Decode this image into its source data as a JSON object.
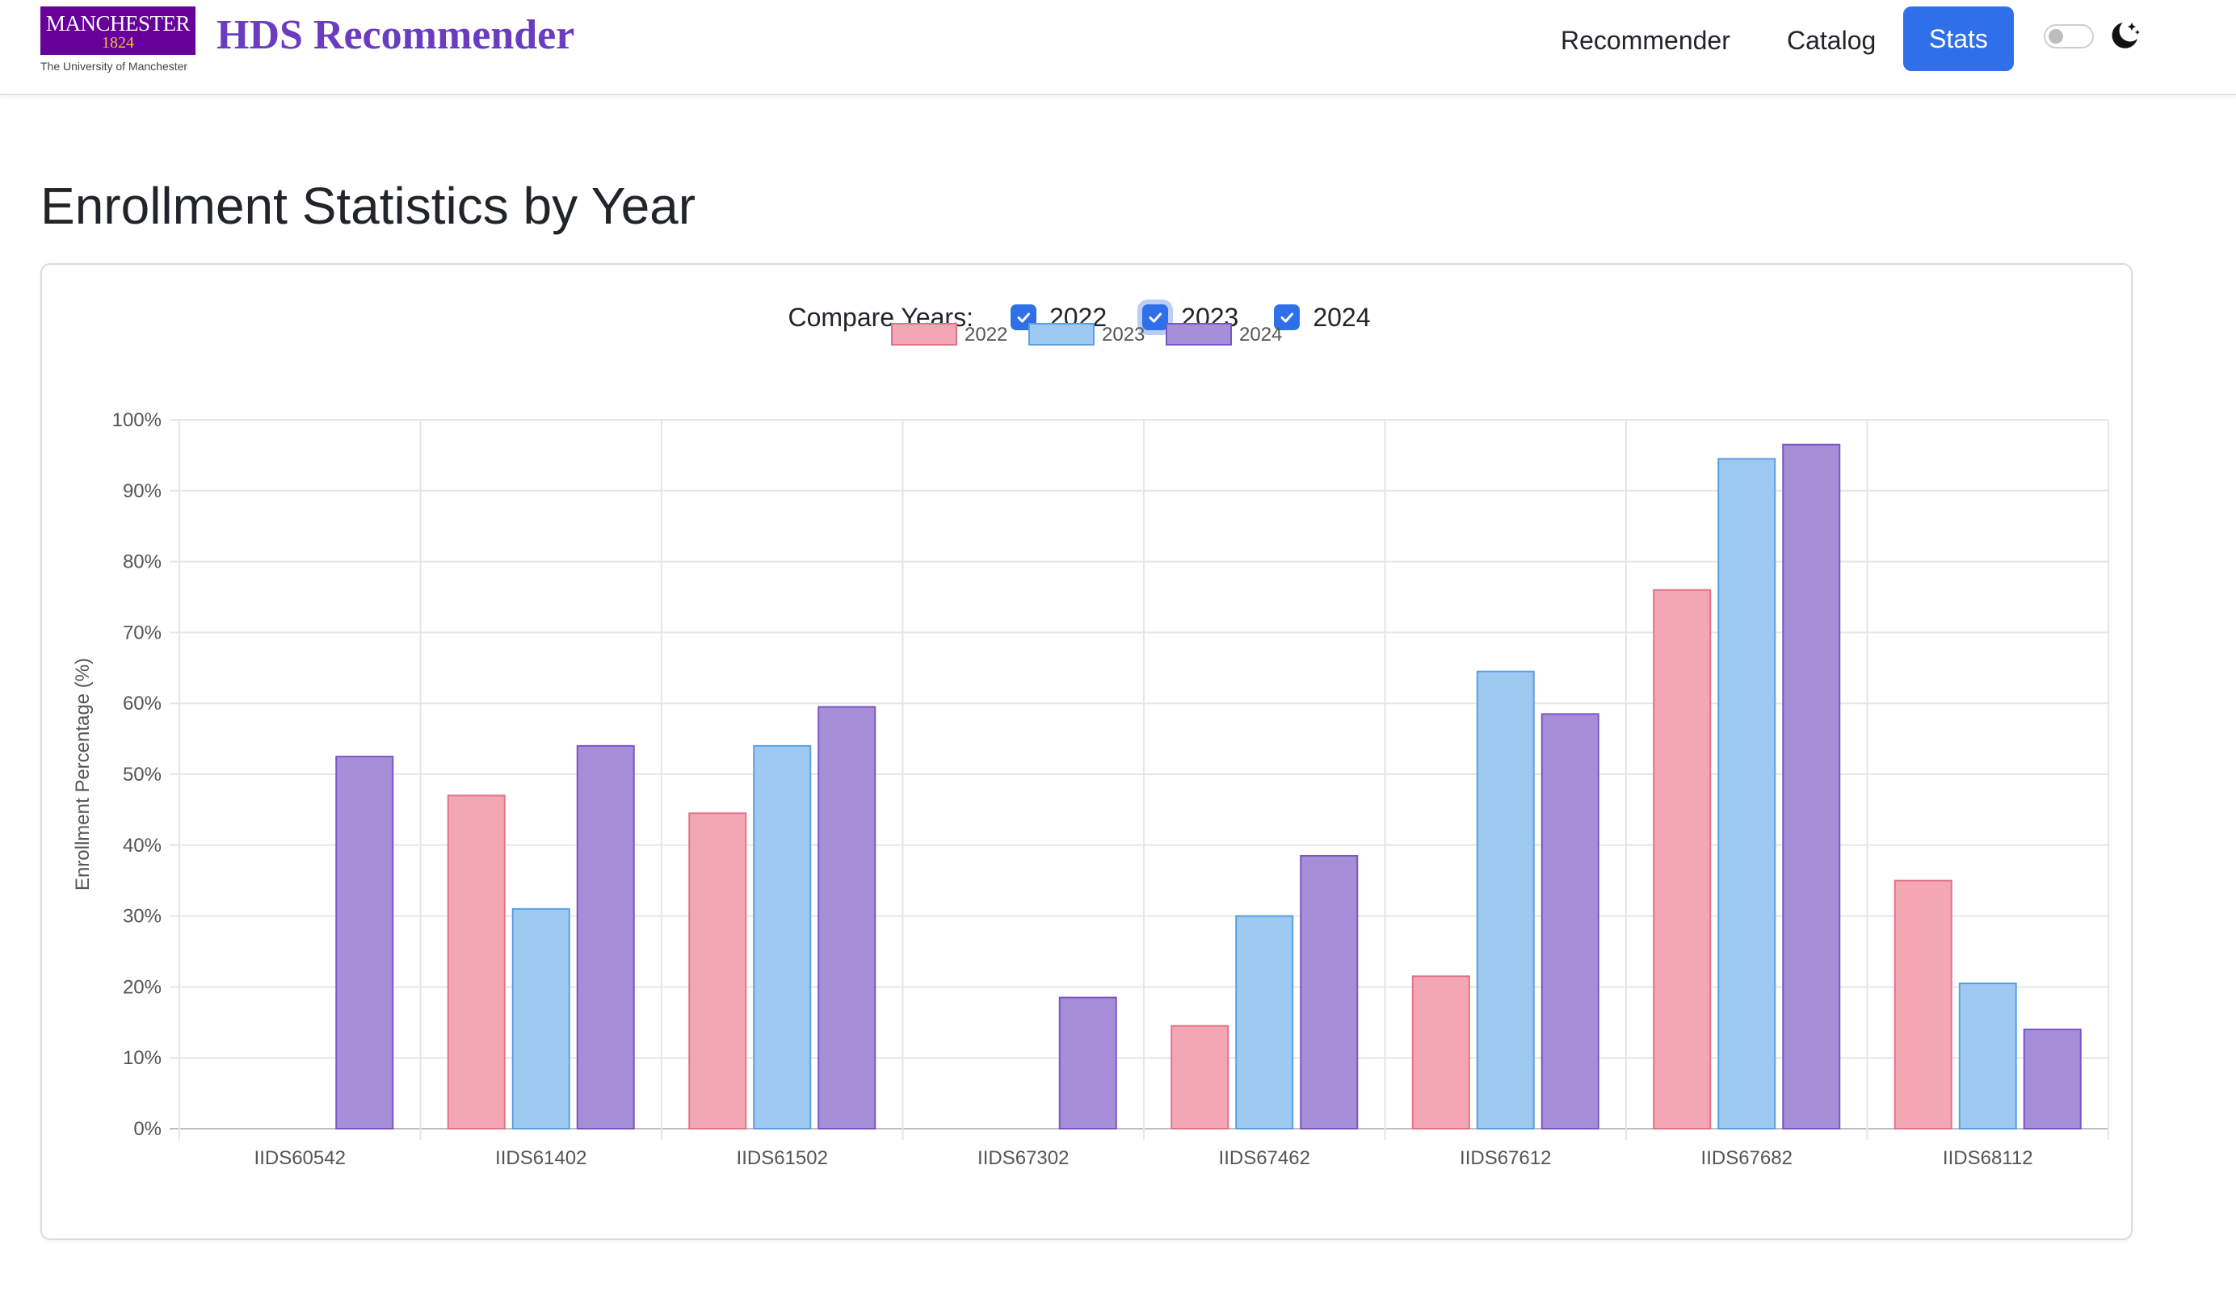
{
  "navbar": {
    "logo": {
      "wordmark": "MANCHESTER",
      "year": "1824",
      "subtitle": "The University of Manchester"
    },
    "brand": "HDS Recommender",
    "links": [
      {
        "label": "Recommender",
        "active": false
      },
      {
        "label": "Catalog",
        "active": false
      },
      {
        "label": "Stats",
        "active": true
      }
    ],
    "theme_toggle": {
      "checked": false,
      "icon": "moon-stars-icon"
    }
  },
  "page": {
    "title": "Enrollment Statistics by Year"
  },
  "compare": {
    "label": "Compare Years:",
    "years": [
      {
        "label": "2022",
        "checked": true
      },
      {
        "label": "2023",
        "checked": true
      },
      {
        "label": "2024",
        "checked": true
      }
    ]
  },
  "colors": {
    "accent": "#2f6fea",
    "brand_purple": "#6a3cc0",
    "series_2022_fill": "#f3a7b5",
    "series_2022_stroke": "#e2728a",
    "series_2023_fill": "#9ec9f1",
    "series_2023_stroke": "#5aa0e0",
    "series_2024_fill": "#a68fd8",
    "series_2024_stroke": "#7a56c4"
  },
  "chart_data": {
    "type": "bar",
    "title": "",
    "xlabel": "",
    "ylabel": "Enrollment Percentage (%)",
    "ylim": [
      0,
      100
    ],
    "yticks": [
      "0%",
      "10%",
      "20%",
      "30%",
      "40%",
      "50%",
      "60%",
      "70%",
      "80%",
      "90%",
      "100%"
    ],
    "grid": true,
    "legend_position": "top-center",
    "categories": [
      "IIDS60542",
      "IIDS61402",
      "IIDS61502",
      "IIDS67302",
      "IIDS67462",
      "IIDS67612",
      "IIDS67682",
      "IIDS68112"
    ],
    "series": [
      {
        "name": "2022",
        "color": "#f3a7b5",
        "stroke": "#e2728a",
        "values": [
          null,
          47,
          44.5,
          null,
          14.5,
          21.5,
          76,
          35
        ]
      },
      {
        "name": "2023",
        "color": "#9ec9f1",
        "stroke": "#5aa0e0",
        "values": [
          null,
          31,
          54,
          null,
          30,
          64.5,
          94.5,
          20.5
        ]
      },
      {
        "name": "2024",
        "color": "#a68fd8",
        "stroke": "#7a56c4",
        "values": [
          52.5,
          54,
          59.5,
          18.5,
          38.5,
          58.5,
          96.5,
          14
        ]
      }
    ]
  }
}
